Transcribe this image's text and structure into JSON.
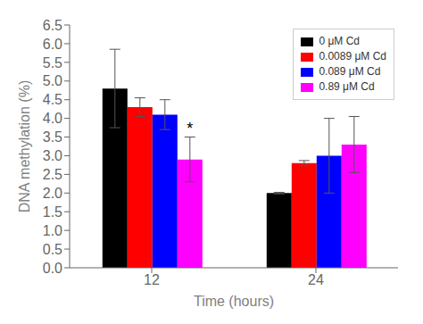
{
  "chart_data": {
    "type": "bar",
    "categories": [
      "12",
      "24"
    ],
    "series": [
      {
        "name": "0 μM Cd",
        "color": "#000000",
        "values": [
          4.8,
          2.0
        ],
        "errors": [
          1.05,
          0.02
        ]
      },
      {
        "name": "0.0089 μM Cd",
        "color": "#ff0000",
        "values": [
          4.3,
          2.8
        ],
        "errors": [
          0.25,
          0.07
        ]
      },
      {
        "name": "0.089 μM Cd",
        "color": "#0000ff",
        "values": [
          4.1,
          3.0
        ],
        "errors": [
          0.4,
          1.0
        ]
      },
      {
        "name": "0.89 μM Cd",
        "color": "#ff00ff",
        "values": [
          2.9,
          3.3
        ],
        "errors": [
          0.6,
          0.75
        ]
      }
    ],
    "xlabel": "Time (hours)",
    "ylabel": "DNA methylation (%)",
    "ylim": [
      0.0,
      6.5
    ],
    "yticks": [
      {
        "value": 0,
        "label": "0.0"
      },
      0.5,
      {
        "value": 1,
        "label": "1.0"
      },
      1.5,
      {
        "value": 2,
        "label": "2.0"
      },
      2.5,
      {
        "value": 3,
        "label": "3.0"
      },
      3.5,
      {
        "value": 4,
        "label": "4.0"
      },
      4.5,
      {
        "value": 5,
        "label": "5.0"
      },
      5.5,
      {
        "value": 6,
        "label": "6.0"
      },
      6.5
    ],
    "legend": "upper right",
    "grid": false,
    "annotations": [
      {
        "text": "*",
        "category": "12",
        "series": "0.89 μM Cd"
      }
    ]
  }
}
